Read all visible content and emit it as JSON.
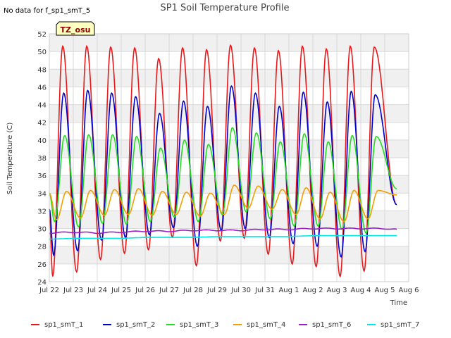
{
  "no_data_text": "No data for f_sp1_smT_5",
  "badge_label": "TZ_osu",
  "chart_data": {
    "type": "line",
    "title": "SP1 Soil Temperature Profile",
    "xlabel": "Time",
    "ylabel": "Soil Temperature (C)",
    "ylim": [
      24,
      52
    ],
    "yticks": [
      24,
      26,
      28,
      30,
      32,
      34,
      36,
      38,
      40,
      42,
      44,
      46,
      48,
      50,
      52
    ],
    "xlim": [
      0,
      15
    ],
    "xticks": [
      0,
      1,
      2,
      3,
      4,
      5,
      6,
      7,
      8,
      9,
      10,
      11,
      12,
      13,
      14,
      15
    ],
    "xtick_labels": [
      "Jul 22",
      "Jul 23",
      "Jul 24",
      "Jul 25",
      "Jul 26",
      "Jul 27",
      "Jul 28",
      "Jul 29",
      "Jul 30",
      "Jul 31",
      "Aug 1",
      "Aug 2",
      "Aug 3",
      "Aug 4",
      "Aug 5",
      "Aug 6"
    ],
    "grid": true,
    "legend_position": "bottom",
    "series": [
      {
        "name": "sp1_smT_1",
        "color": "#e8191a",
        "peaks": [
          50.6,
          50.6,
          50.5,
          50.4,
          49.2,
          50.4,
          50.2,
          50.7,
          50.4,
          50.1,
          50.6,
          50.3,
          50.6,
          50.5
        ],
        "troughs": [
          24.6,
          25.1,
          26.5,
          27.2,
          27.6,
          29.0,
          25.8,
          28.6,
          28.9,
          27.1,
          26.0,
          25.7,
          24.6,
          25.2
        ],
        "start": 32.0,
        "end": 32.7,
        "end_day": 14.5,
        "phase": 0.56
      },
      {
        "name": "sp1_smT_2",
        "color": "#0000cc",
        "peaks": [
          45.3,
          45.6,
          45.3,
          44.9,
          43.0,
          44.4,
          43.8,
          46.1,
          45.3,
          43.8,
          45.4,
          44.3,
          45.5,
          45.1
        ],
        "troughs": [
          27.0,
          27.5,
          28.7,
          29.0,
          29.3,
          30.1,
          28.0,
          29.8,
          30.0,
          29.0,
          28.3,
          28.0,
          26.8,
          27.4
        ],
        "start": 32.2,
        "end": 32.7,
        "end_day": 14.5,
        "phase": 0.6
      },
      {
        "name": "sp1_smT_3",
        "color": "#22dd22",
        "peaks": [
          40.5,
          40.6,
          40.6,
          40.4,
          39.1,
          40.0,
          39.5,
          41.4,
          40.8,
          39.8,
          40.7,
          39.8,
          40.5,
          40.4
        ],
        "troughs": [
          30.8,
          30.2,
          30.6,
          30.5,
          30.8,
          31.3,
          30.8,
          31.6,
          31.9,
          31.1,
          30.3,
          30.3,
          29.9,
          29.5
        ],
        "start": 34.0,
        "end": 34.5,
        "end_day": 14.5,
        "phase": 0.64
      },
      {
        "name": "sp1_smT_4",
        "color": "#f0a000",
        "peaks": [
          34.2,
          34.3,
          34.4,
          34.5,
          34.2,
          34.1,
          34.0,
          34.9,
          34.8,
          34.4,
          34.6,
          34.1,
          34.3,
          34.3
        ],
        "troughs": [
          31.0,
          31.2,
          31.5,
          31.6,
          31.5,
          31.6,
          31.4,
          31.6,
          32.3,
          32.2,
          31.6,
          31.1,
          30.8,
          31.1
        ],
        "start": 34.0,
        "end": 33.8,
        "end_day": 14.5,
        "phase": 0.72
      },
      {
        "name": "sp1_smT_6",
        "color": "#9a1fc9",
        "flat": [
          [
            0,
            29.5
          ],
          [
            1,
            29.6
          ],
          [
            2,
            29.5
          ],
          [
            3,
            29.6
          ],
          [
            4,
            29.7
          ],
          [
            5,
            29.7
          ],
          [
            6,
            29.8
          ],
          [
            7,
            29.8
          ],
          [
            8,
            29.8
          ],
          [
            9,
            29.9
          ],
          [
            10,
            29.9
          ],
          [
            11,
            30.0
          ],
          [
            12,
            30.0
          ],
          [
            13,
            30.0
          ],
          [
            14,
            30.0
          ],
          [
            14.5,
            29.9
          ]
        ]
      },
      {
        "name": "sp1_smT_7",
        "color": "#00e8e8",
        "flat": [
          [
            0,
            28.8
          ],
          [
            1,
            28.9
          ],
          [
            2,
            28.9
          ],
          [
            3,
            28.9
          ],
          [
            4,
            29.0
          ],
          [
            5,
            29.0
          ],
          [
            6,
            29.0
          ],
          [
            7,
            29.1
          ],
          [
            8,
            29.1
          ],
          [
            9,
            29.1
          ],
          [
            10,
            29.1
          ],
          [
            11,
            29.2
          ],
          [
            12,
            29.2
          ],
          [
            13,
            29.2
          ],
          [
            14,
            29.2
          ],
          [
            14.5,
            29.2
          ]
        ]
      }
    ]
  }
}
